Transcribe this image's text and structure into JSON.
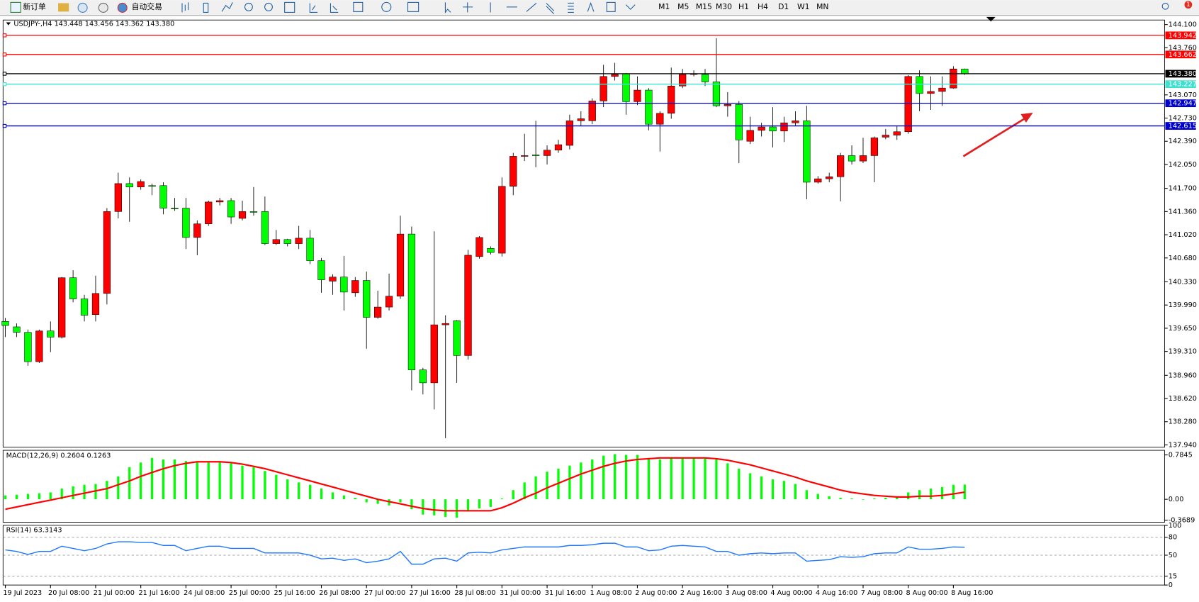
{
  "toolbar": {
    "new_order": "新订单",
    "auto_trading": "自动交易",
    "timeframes": [
      "M1",
      "M5",
      "M15",
      "M30",
      "H1",
      "H4",
      "D1",
      "W1",
      "MN"
    ],
    "alert_count": 1
  },
  "chart_data": [
    {
      "type": "candlestick",
      "title": "USDJPY-,H4  143.448 143.456 143.362 143.380",
      "categories": [
        "19 Jul 2023",
        null,
        null,
        null,
        "20 Jul 08:00",
        null,
        null,
        null,
        "21 Jul 00:00",
        null,
        null,
        null,
        "21 Jul 16:00",
        null,
        null,
        null,
        "24 Jul 08:00",
        null,
        null,
        null,
        "25 Jul 00:00",
        null,
        null,
        null,
        "25 Jul 16:00",
        null,
        null,
        null,
        "26 Jul 08:00",
        null,
        null,
        null,
        "27 Jul 00:00",
        null,
        null,
        null,
        "27 Jul 16:00",
        null,
        null,
        null,
        "28 Jul 08:00",
        null,
        null,
        null,
        "31 Jul 00:00",
        null,
        null,
        null,
        "31 Jul 16:00",
        null,
        null,
        null,
        "1 Aug 08:00",
        null,
        null,
        null,
        "2 Aug 00:00",
        null,
        null,
        null,
        "2 Aug 16:00",
        null,
        null,
        null,
        "3 Aug 08:00",
        null,
        null,
        null,
        "4 Aug 00:00",
        null,
        null,
        null,
        "4 Aug 16:00",
        null,
        null,
        null,
        "7 Aug 08:00",
        null,
        null,
        null,
        "8 Aug 00:00",
        null,
        null,
        null,
        "8 Aug 16:00",
        null
      ],
      "open": [
        139.75,
        139.67,
        139.59,
        139.16,
        139.61,
        139.52,
        140.39,
        140.08,
        139.85,
        140.16,
        141.36,
        141.77,
        141.72,
        141.74,
        141.74,
        141.41,
        141.41,
        140.98,
        141.18,
        141.5,
        141.52,
        141.26,
        141.36,
        141.36,
        140.89,
        140.95,
        140.89,
        140.97,
        140.64,
        140.34,
        140.4,
        140.17,
        140.35,
        139.81,
        139.96,
        140.12,
        141.03,
        139.04,
        138.85,
        139.7,
        139.76,
        139.25,
        140.7,
        140.82,
        140.75,
        141.73,
        142.17,
        142.19,
        142.18,
        142.26,
        142.33,
        142.69,
        142.69,
        142.98,
        143.34,
        143.38,
        142.97,
        143.14,
        142.64,
        142.8,
        143.2,
        143.37,
        143.37,
        143.26,
        142.91,
        142.93,
        142.39,
        142.55,
        142.6,
        142.54,
        142.66,
        142.69,
        141.79,
        141.84,
        141.87,
        142.18,
        142.1,
        142.18,
        142.45,
        142.48,
        142.53,
        143.34,
        143.09,
        143.12,
        143.17,
        143.448
      ],
      "high": [
        139.8,
        139.72,
        139.63,
        139.63,
        139.75,
        140.4,
        140.5,
        140.14,
        140.42,
        141.41,
        141.93,
        141.86,
        141.83,
        141.77,
        141.79,
        141.56,
        141.56,
        141.23,
        141.52,
        141.56,
        141.56,
        141.52,
        141.72,
        141.58,
        141.09,
        140.96,
        141.15,
        141.09,
        140.68,
        140.44,
        140.71,
        140.4,
        140.48,
        140.2,
        140.45,
        141.3,
        141.14,
        139.07,
        141.07,
        139.84,
        139.77,
        140.8,
        141.0,
        140.85,
        141.86,
        142.22,
        142.5,
        142.69,
        142.33,
        142.41,
        142.78,
        142.83,
        143.02,
        143.51,
        143.54,
        143.39,
        143.34,
        143.17,
        142.83,
        143.47,
        143.45,
        143.43,
        143.45,
        143.9,
        143.11,
        142.98,
        142.75,
        142.66,
        142.89,
        142.75,
        142.83,
        142.91,
        141.88,
        141.93,
        142.22,
        142.33,
        142.44,
        142.46,
        142.57,
        142.61,
        143.36,
        143.43,
        143.34,
        143.34,
        143.49,
        143.456
      ],
      "low": [
        139.52,
        139.52,
        139.1,
        139.14,
        139.3,
        139.5,
        140.03,
        139.75,
        139.75,
        140.0,
        141.26,
        141.21,
        141.68,
        141.6,
        141.32,
        141.37,
        140.81,
        140.72,
        141.15,
        141.45,
        141.18,
        141.23,
        141.3,
        140.87,
        140.87,
        140.85,
        140.81,
        140.59,
        140.17,
        140.14,
        139.91,
        140.11,
        139.35,
        139.79,
        139.91,
        140.08,
        138.74,
        138.68,
        138.46,
        138.04,
        138.85,
        139.19,
        140.67,
        140.73,
        140.7,
        141.6,
        142.1,
        142.01,
        142.05,
        142.22,
        142.27,
        142.61,
        142.64,
        142.89,
        143.28,
        142.78,
        142.92,
        142.55,
        142.24,
        142.72,
        143.17,
        143.34,
        143.2,
        142.89,
        142.75,
        142.07,
        142.35,
        142.46,
        142.3,
        142.38,
        142.61,
        141.54,
        141.77,
        141.79,
        141.51,
        142.05,
        142.07,
        141.79,
        142.42,
        142.41,
        142.5,
        142.83,
        142.85,
        142.91,
        143.16,
        143.362
      ],
      "close": [
        139.69,
        139.59,
        139.16,
        139.61,
        139.52,
        140.39,
        140.08,
        139.84,
        140.16,
        141.36,
        141.77,
        141.72,
        141.8,
        141.73,
        141.41,
        141.4,
        140.98,
        141.18,
        141.5,
        141.52,
        141.28,
        141.36,
        141.35,
        140.89,
        140.95,
        140.89,
        140.97,
        140.64,
        140.36,
        140.4,
        140.18,
        140.35,
        139.81,
        139.96,
        140.12,
        141.03,
        139.04,
        138.85,
        139.7,
        139.72,
        139.25,
        140.72,
        140.98,
        140.76,
        141.73,
        142.17,
        142.18,
        142.18,
        142.26,
        142.34,
        142.69,
        142.72,
        142.98,
        143.34,
        143.37,
        142.97,
        143.14,
        142.64,
        142.8,
        143.2,
        143.37,
        143.38,
        143.26,
        142.91,
        142.93,
        142.41,
        142.55,
        142.6,
        142.54,
        142.66,
        142.69,
        141.79,
        141.84,
        141.87,
        142.18,
        142.1,
        142.18,
        142.44,
        142.48,
        142.53,
        143.34,
        143.09,
        143.12,
        143.17,
        143.45,
        143.38
      ],
      "up_color": "#ff0000",
      "down_color": "#00ff00",
      "ylim": [
        137.906,
        144.167
      ],
      "yticks": [
        {
          "value": 144.1,
          "label": "144.100"
        },
        {
          "value": 143.76,
          "label": "143.760"
        },
        {
          "value": 143.07,
          "label": "143.070"
        },
        {
          "value": 142.73,
          "label": "142.730"
        },
        {
          "value": 142.39,
          "label": "142.390"
        },
        {
          "value": 142.05,
          "label": "142.050"
        },
        {
          "value": 141.7,
          "label": "141.700"
        },
        {
          "value": 141.36,
          "label": "141.360"
        },
        {
          "value": 141.02,
          "label": "141.020"
        },
        {
          "value": 140.68,
          "label": "140.680"
        },
        {
          "value": 140.33,
          "label": "140.330"
        },
        {
          "value": 139.99,
          "label": "139.990"
        },
        {
          "value": 139.65,
          "label": "139.650"
        },
        {
          "value": 139.31,
          "label": "139.310"
        },
        {
          "value": 138.96,
          "label": "138.960"
        },
        {
          "value": 138.62,
          "label": "138.620"
        },
        {
          "value": 138.28,
          "label": "138.280"
        },
        {
          "value": 137.94,
          "label": "137.940"
        }
      ],
      "levels": [
        {
          "value": 143.942,
          "label": "143.942",
          "color": "#ff0000"
        },
        {
          "value": 143.662,
          "label": "143.662",
          "color": "#ff0000"
        },
        {
          "value": 143.38,
          "label": "143.380",
          "color": "#000000"
        },
        {
          "value": 143.227,
          "label": "143.227",
          "color": "#40e0d0"
        },
        {
          "value": 142.947,
          "label": "142.947",
          "color": "#0000cd"
        },
        {
          "value": 142.615,
          "label": "142.615",
          "color": "#0000cd"
        }
      ]
    },
    {
      "type": "macd",
      "title": "MACD(12,26,9) 0.2604 0.1263",
      "series": [
        {
          "color": "#00ff00",
          "values": [
            0.068,
            0.081,
            0.095,
            0.108,
            0.122,
            0.189,
            0.23,
            0.257,
            0.271,
            0.325,
            0.406,
            0.568,
            0.65,
            0.731,
            0.704,
            0.704,
            0.677,
            0.65,
            0.65,
            0.65,
            0.636,
            0.595,
            0.568,
            0.501,
            0.433,
            0.352,
            0.298,
            0.257,
            0.189,
            0.122,
            0.068,
            0.027,
            -0.054,
            -0.081,
            -0.108,
            -0.054,
            -0.176,
            -0.271,
            -0.284,
            -0.311,
            -0.325,
            -0.217,
            -0.162,
            -0.135,
            0.014,
            0.162,
            0.298,
            0.406,
            0.487,
            0.541,
            0.595,
            0.65,
            0.704,
            0.771,
            0.798,
            0.785,
            0.785,
            0.731,
            0.704,
            0.731,
            0.731,
            0.731,
            0.717,
            0.704,
            0.636,
            0.541,
            0.46,
            0.406,
            0.352,
            0.325,
            0.271,
            0.162,
            0.095,
            0.054,
            0.027,
            0.014,
            0.0,
            0.014,
            0.027,
            0.041,
            0.122,
            0.162,
            0.189,
            0.217,
            0.257,
            0.2604
          ]
        },
        {
          "color": "#ff0000",
          "values": [
            -0.176,
            -0.135,
            -0.095,
            -0.054,
            -0.014,
            0.027,
            0.068,
            0.108,
            0.149,
            0.189,
            0.257,
            0.325,
            0.406,
            0.474,
            0.541,
            0.595,
            0.636,
            0.663,
            0.663,
            0.663,
            0.65,
            0.622,
            0.582,
            0.541,
            0.487,
            0.433,
            0.379,
            0.325,
            0.271,
            0.217,
            0.162,
            0.108,
            0.054,
            0.0,
            -0.041,
            -0.081,
            -0.122,
            -0.162,
            -0.189,
            -0.203,
            -0.203,
            -0.203,
            -0.203,
            -0.203,
            -0.149,
            -0.068,
            0.027,
            0.108,
            0.203,
            0.284,
            0.365,
            0.447,
            0.514,
            0.582,
            0.636,
            0.677,
            0.704,
            0.717,
            0.731,
            0.731,
            0.731,
            0.731,
            0.731,
            0.717,
            0.69,
            0.65,
            0.609,
            0.555,
            0.501,
            0.447,
            0.392,
            0.325,
            0.271,
            0.217,
            0.162,
            0.122,
            0.095,
            0.068,
            0.054,
            0.041,
            0.041,
            0.054,
            0.054,
            0.068,
            0.095,
            0.1263
          ]
        }
      ],
      "ylim": [
        -0.406,
        0.866
      ],
      "yticks": [
        0.7845,
        {
          "value": 0,
          "label": "0.00"
        },
        -0.3689
      ]
    },
    {
      "type": "line",
      "title": "RSI(14) 63.3143",
      "color": "#1e78ff",
      "values": [
        58.8,
        56.3,
        51.3,
        56.3,
        56.3,
        65.0,
        61.3,
        57.5,
        61.3,
        68.8,
        72.5,
        72.5,
        71.3,
        71.3,
        66.3,
        66.3,
        57.5,
        61.3,
        65.0,
        65.0,
        61.3,
        61.3,
        61.3,
        53.8,
        53.8,
        53.8,
        53.8,
        50.0,
        43.8,
        45.0,
        41.3,
        43.8,
        37.5,
        40.0,
        43.8,
        56.3,
        35.0,
        35.0,
        43.8,
        45.0,
        40.0,
        53.8,
        55.0,
        53.8,
        58.8,
        61.3,
        63.8,
        63.8,
        63.8,
        63.8,
        66.3,
        66.3,
        67.5,
        70.0,
        70.0,
        63.8,
        63.8,
        57.5,
        58.8,
        65.0,
        66.3,
        65.0,
        63.8,
        56.3,
        56.3,
        50.0,
        52.5,
        53.8,
        52.5,
        53.8,
        53.8,
        40.0,
        41.3,
        42.5,
        47.5,
        46.3,
        47.5,
        52.5,
        53.8,
        53.8,
        63.8,
        60.0,
        60.0,
        61.3,
        63.8,
        63.3143
      ],
      "ylim": [
        0,
        100
      ],
      "yticks": [
        100,
        80,
        50,
        15,
        0
      ],
      "grid": true
    }
  ]
}
